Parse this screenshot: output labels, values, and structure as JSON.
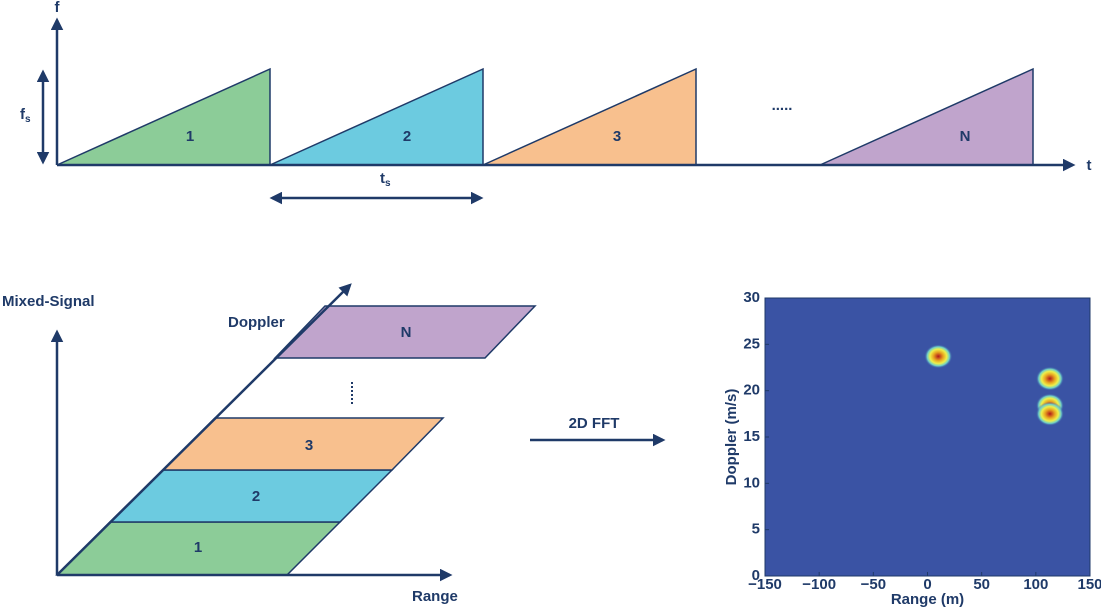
{
  "chirps": {
    "y_axis_label": "f",
    "x_axis_label": "t",
    "span_label": {
      "main": "f",
      "sub": "s"
    },
    "period_label": {
      "main": "t",
      "sub": "s"
    },
    "labels": [
      "1",
      "2",
      "3",
      "N"
    ],
    "ellipsis": "....."
  },
  "frames": {
    "y_axis_label": "Mixed-Signal",
    "x_axis_label": "Range",
    "depth_label": "Doppler",
    "labels": [
      "1",
      "2",
      "3",
      "N"
    ]
  },
  "transform": {
    "label": "2D FFT"
  },
  "heatmap": {
    "xlabel": "Range (m)",
    "ylabel": "Doppler (m/s)",
    "xlim": [
      -150,
      150
    ],
    "ylim": [
      0,
      30
    ],
    "xticks": [
      {
        "value": -150,
        "label": "−150"
      },
      {
        "value": -100,
        "label": "−100"
      },
      {
        "value": -50,
        "label": "−50"
      },
      0,
      50,
      100,
      150
    ],
    "yticks": [
      0,
      5,
      10,
      15,
      20,
      25,
      30
    ],
    "targets": {
      "x": [
        10,
        113,
        113,
        113
      ],
      "y": [
        23.7,
        21.3,
        18.4,
        17.5
      ]
    }
  }
}
